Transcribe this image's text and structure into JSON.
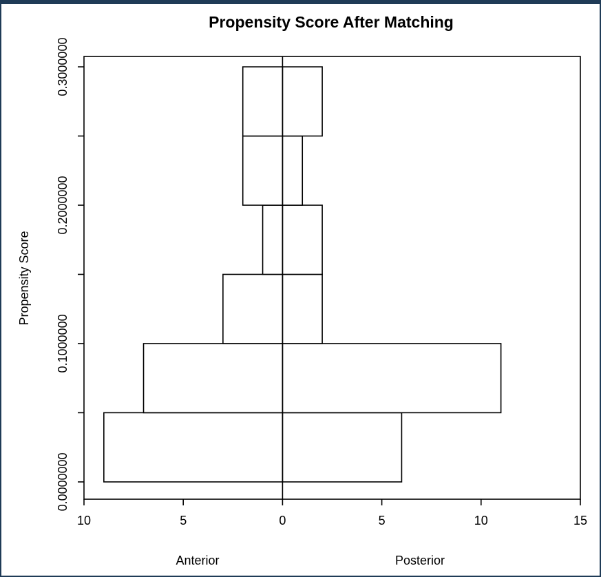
{
  "colors": {
    "frame": "#1f3b57",
    "ink": "#000000",
    "bar_fill": "#ffffff"
  },
  "chart_data": {
    "type": "bar",
    "orientation": "horizontal-back-to-back",
    "title": "Propensity Score After Matching",
    "ylabel": "Propensity Score",
    "left_label": "Anterior",
    "right_label": "Posterior",
    "xlim": [
      -10,
      15
    ],
    "ylim": [
      -0.0125,
      0.3075
    ],
    "x_ticks": [
      {
        "value": -10,
        "label": "10"
      },
      {
        "value": -5,
        "label": "5"
      },
      {
        "value": 0,
        "label": "0"
      },
      {
        "value": 5,
        "label": "5"
      },
      {
        "value": 10,
        "label": "10"
      },
      {
        "value": 15,
        "label": "15"
      }
    ],
    "y_ticks": [
      0.0,
      0.05,
      0.1,
      0.15,
      0.2,
      0.25,
      0.3
    ],
    "y_tick_labels": [
      {
        "value": 0.0,
        "label": "0.0000000"
      },
      {
        "value": 0.1,
        "label": "0.1000000"
      },
      {
        "value": 0.2,
        "label": "0.2000000"
      },
      {
        "value": 0.3,
        "label": "0.3000000"
      }
    ],
    "bins": [
      {
        "from": 0.0,
        "to": 0.05,
        "anterior": 9,
        "posterior": 6
      },
      {
        "from": 0.05,
        "to": 0.1,
        "anterior": 7,
        "posterior": 11
      },
      {
        "from": 0.1,
        "to": 0.15,
        "anterior": 3,
        "posterior": 2
      },
      {
        "from": 0.15,
        "to": 0.2,
        "anterior": 1,
        "posterior": 2
      },
      {
        "from": 0.2,
        "to": 0.25,
        "anterior": 2,
        "posterior": 1
      },
      {
        "from": 0.25,
        "to": 0.3,
        "anterior": 2,
        "posterior": 2
      }
    ],
    "grid": false,
    "legend": "none"
  }
}
